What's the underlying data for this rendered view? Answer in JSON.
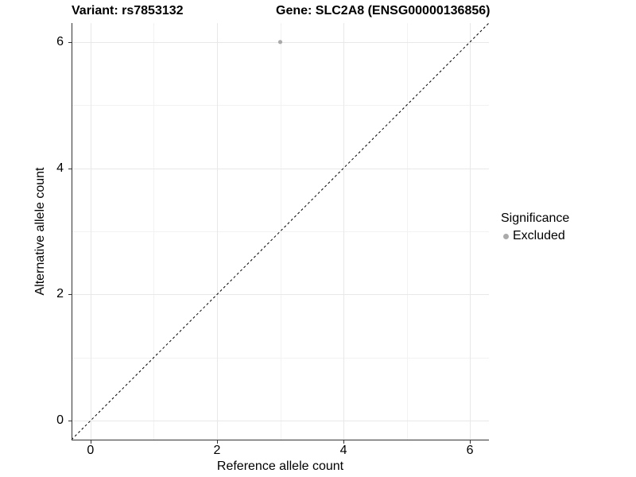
{
  "figure": {
    "title_left": "Variant: rs7853132",
    "title_right": "Gene: SLC2A8 (ENSG00000136856)"
  },
  "chart_data": {
    "type": "scatter",
    "title": "Variant: rs7853132    Gene: SLC2A8 (ENSG00000136856)",
    "xlabel": "Reference allele count",
    "ylabel": "Alternative allele count",
    "xlim": [
      -0.3,
      6.3
    ],
    "ylim": [
      -0.3,
      6.3
    ],
    "xticks": [
      0,
      2,
      4,
      6
    ],
    "yticks": [
      0,
      2,
      4,
      6
    ],
    "minor_xticks": [
      1,
      3,
      5
    ],
    "minor_yticks": [
      1,
      3,
      5
    ],
    "grid": true,
    "series": [
      {
        "name": "Excluded",
        "color": "#aaaaaa",
        "points": [
          {
            "x": 3,
            "y": 6
          }
        ]
      }
    ],
    "reference_line": {
      "type": "identity",
      "from": [
        -0.3,
        -0.3
      ],
      "to": [
        6.3,
        6.3
      ],
      "style": "dashed",
      "color": "#000000"
    },
    "legend": {
      "title": "Significance",
      "position": "right",
      "items": [
        {
          "label": "Excluded",
          "color": "#aaaaaa",
          "marker": "circle"
        }
      ]
    }
  },
  "colors": {
    "background": "#ffffff",
    "axis_line": "#333333",
    "grid_major": "#e8e8e8",
    "grid_minor": "#f2f2f2",
    "point": "#aaaaaa",
    "text": "#000000"
  }
}
